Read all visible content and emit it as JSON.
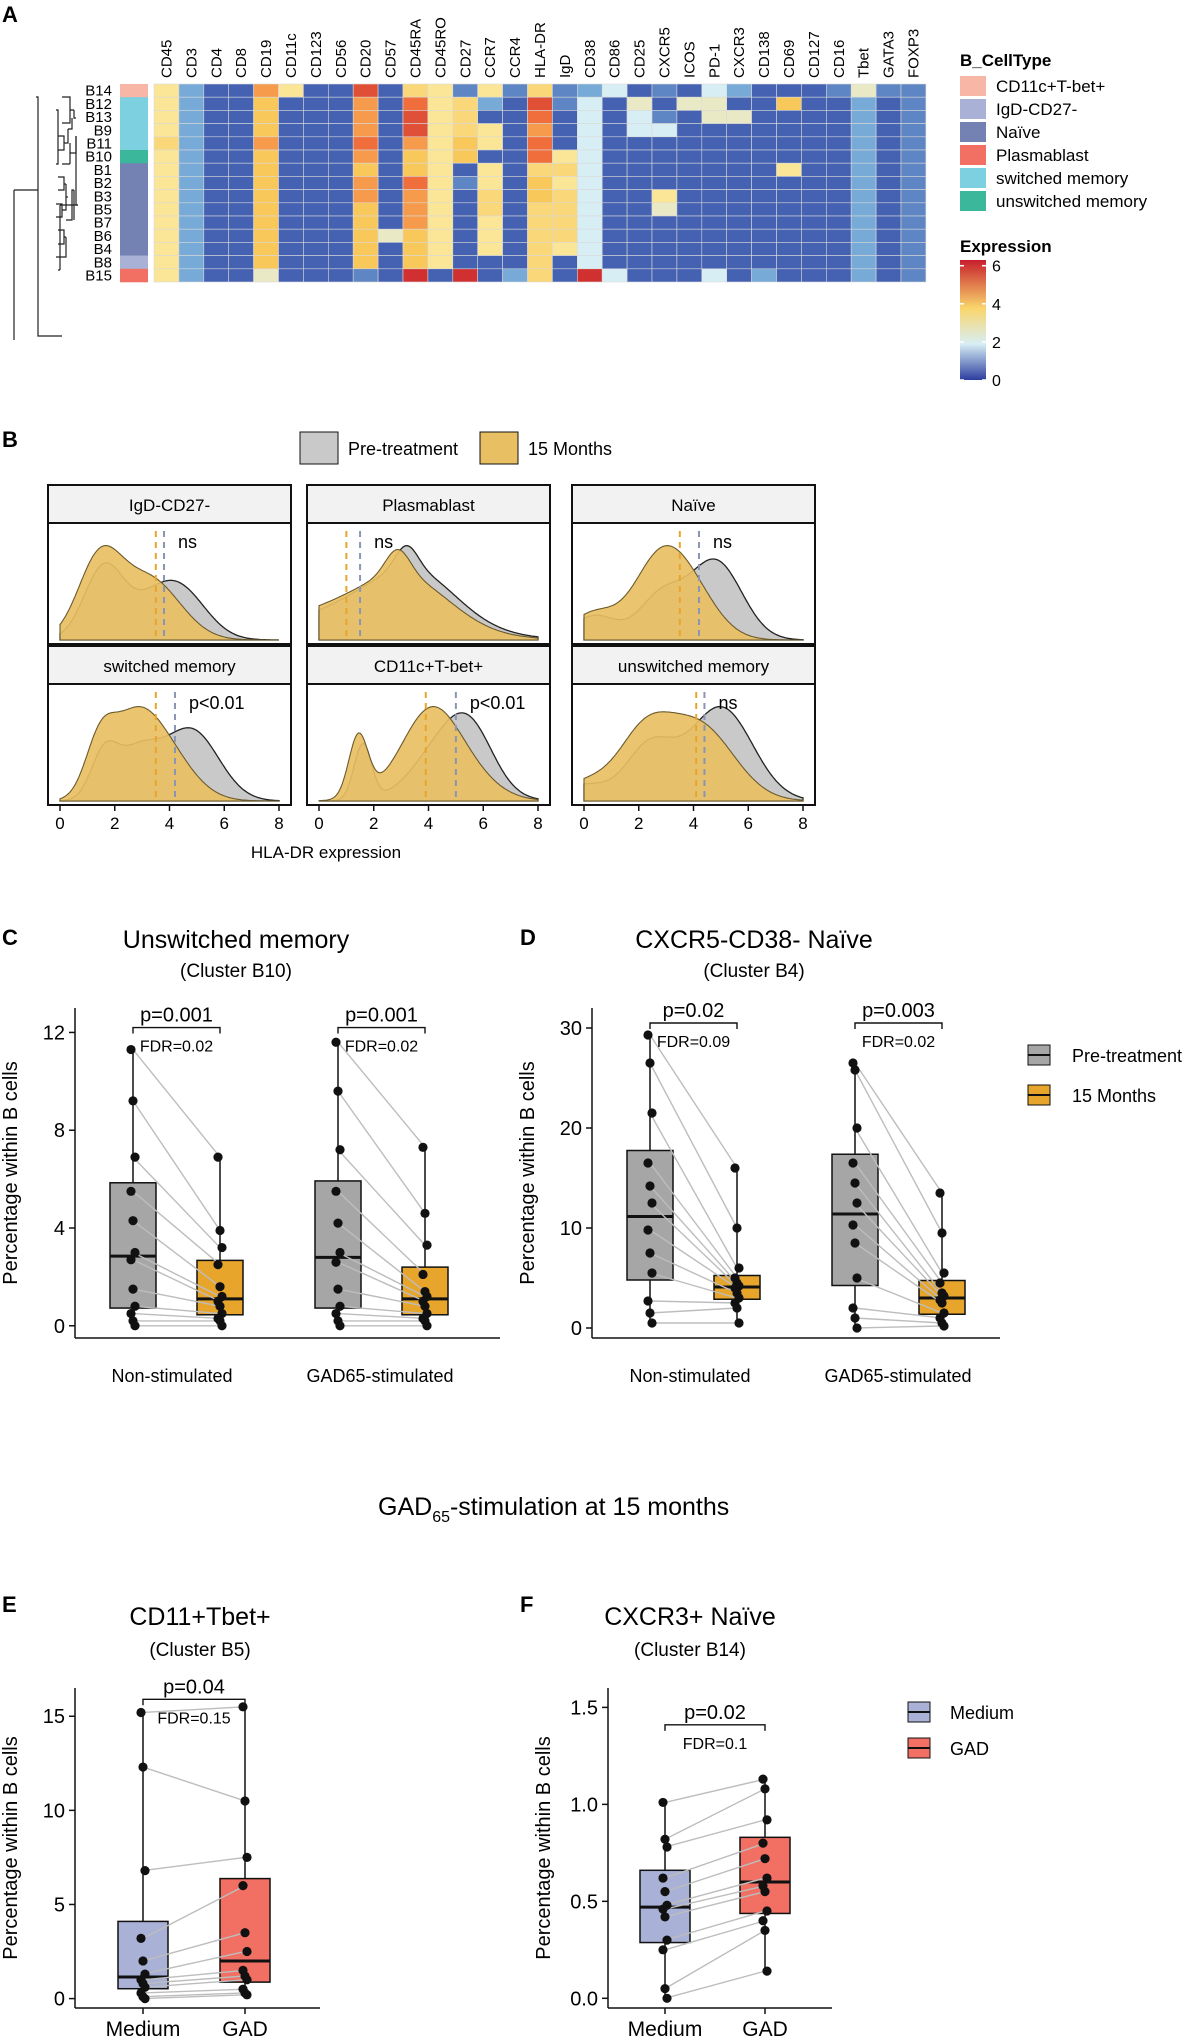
{
  "chart_data": [
    {
      "panel": "A",
      "type": "heatmap",
      "markers": [
        "CD45",
        "CD3",
        "CD4",
        "CD8",
        "CD19",
        "CD11c",
        "CD123",
        "CD56",
        "CD20",
        "CD57",
        "CD45RA",
        "CD45RO",
        "CD27",
        "CCR7",
        "CCR4",
        "HLA-DR",
        "IgD",
        "CD38",
        "CD86",
        "CD25",
        "CXCR5",
        "ICOS",
        "PD-1",
        "CXCR3",
        "CD138",
        "CD69",
        "CD127",
        "CD16",
        "Tbet",
        "GATA3",
        "FOXP3"
      ],
      "clusters": [
        "B14",
        "B12",
        "B13",
        "B9",
        "B11",
        "B10",
        "B1",
        "B2",
        "B3",
        "B5",
        "B7",
        "B6",
        "B4",
        "B8",
        "B15"
      ],
      "cluster_celltype": [
        "CD11c+T-bet+",
        "switched memory",
        "switched memory",
        "switched memory",
        "switched memory",
        "unswitched memory",
        "Naïve",
        "Naïve",
        "Naïve",
        "Naïve",
        "Naïve",
        "Naïve",
        "Naïve",
        "IgD-CD27-",
        "Plasmablast"
      ],
      "values": [
        [
          3,
          1.5,
          0.5,
          0.5,
          4.5,
          3,
          0.5,
          0.5,
          5.5,
          0.5,
          3.5,
          3,
          1,
          3,
          1,
          3.5,
          1,
          1.5,
          2,
          0.5,
          1,
          0.5,
          2,
          1.5,
          0.5,
          0.5,
          0.5,
          1,
          2.5,
          1,
          1
        ],
        [
          3,
          1.5,
          0.5,
          0.5,
          4,
          0.5,
          0.5,
          0.5,
          4.5,
          0.5,
          5,
          3,
          3.5,
          1.5,
          0.5,
          5.5,
          1,
          2,
          0.5,
          2.5,
          0.5,
          2.5,
          2.5,
          0.5,
          0.5,
          4,
          0.5,
          0.5,
          1.5,
          0.5,
          1
        ],
        [
          3,
          1.5,
          0.5,
          0.5,
          4,
          0.5,
          0.5,
          0.5,
          4.5,
          0.5,
          5.5,
          3,
          3.5,
          0.5,
          0.5,
          5,
          0.5,
          2,
          0.5,
          2,
          1,
          0.5,
          2.5,
          2.5,
          0.5,
          0.5,
          0.5,
          0.5,
          1.5,
          0.5,
          1
        ],
        [
          3,
          1.5,
          0.5,
          0.5,
          4,
          0.5,
          0.5,
          0.5,
          4.5,
          0.5,
          5.5,
          3,
          3.5,
          3,
          0.5,
          4.5,
          0.5,
          2,
          0.5,
          2,
          2,
          0.5,
          0.5,
          0.5,
          0.5,
          0.5,
          0.5,
          0.5,
          1.5,
          0.5,
          1
        ],
        [
          3.5,
          1.5,
          0.5,
          0.5,
          4.5,
          0.5,
          0.5,
          0.5,
          5,
          0.5,
          4.5,
          3,
          4,
          3,
          0.5,
          5,
          0.5,
          2,
          0.5,
          0.5,
          0.5,
          0.5,
          0.5,
          0.5,
          0.5,
          0.5,
          0.5,
          0.5,
          1.5,
          0.5,
          1
        ],
        [
          3,
          1.5,
          0.5,
          0.5,
          4,
          0.5,
          0.5,
          0.5,
          4.5,
          0.5,
          4,
          3,
          4,
          0.5,
          0.5,
          5,
          3,
          2,
          0.5,
          0.5,
          0.5,
          0.5,
          0.5,
          0.5,
          0.5,
          0.5,
          0.5,
          0.5,
          1.5,
          0.5,
          1
        ],
        [
          3,
          1.5,
          0.5,
          0.5,
          4,
          0.5,
          0.5,
          0.5,
          4,
          0.5,
          4,
          3,
          0.5,
          3,
          0.5,
          3.5,
          3.5,
          2,
          0.5,
          0.5,
          0.5,
          0.5,
          0.5,
          0.5,
          0.5,
          3,
          0.5,
          0.5,
          1.5,
          0.5,
          1
        ],
        [
          3,
          1.5,
          0.5,
          0.5,
          4,
          0.5,
          0.5,
          0.5,
          4.5,
          0.5,
          5,
          3,
          1,
          3,
          0.5,
          4,
          3,
          2,
          0.5,
          0.5,
          0.5,
          0.5,
          0.5,
          0.5,
          0.5,
          0.5,
          0.5,
          0.5,
          1.5,
          0.5,
          1
        ],
        [
          3,
          1.5,
          0.5,
          0.5,
          4,
          0.5,
          0.5,
          0.5,
          4.5,
          0.5,
          4.5,
          3,
          0.5,
          3.5,
          0.5,
          4,
          3.5,
          2,
          0.5,
          0.5,
          3,
          0.5,
          0.5,
          0.5,
          0.5,
          0.5,
          0.5,
          0.5,
          1.5,
          0.5,
          1
        ],
        [
          3,
          1.5,
          0.5,
          0.5,
          4,
          0.5,
          0.5,
          0.5,
          4,
          0.5,
          4.5,
          3,
          0.5,
          3.5,
          0.5,
          3.5,
          3.5,
          2,
          0.5,
          0.5,
          2.5,
          0.5,
          0.5,
          0.5,
          0.5,
          0.5,
          0.5,
          0.5,
          1.5,
          0.5,
          1
        ],
        [
          3,
          1.5,
          0.5,
          0.5,
          4,
          0.5,
          0.5,
          0.5,
          4,
          0.5,
          4.5,
          3,
          0.5,
          3,
          0.5,
          3.5,
          3.5,
          2,
          0.5,
          0.5,
          0.5,
          0.5,
          0.5,
          0.5,
          0.5,
          0.5,
          0.5,
          0.5,
          1.5,
          0.5,
          1
        ],
        [
          3,
          1.5,
          0.5,
          0.5,
          4,
          0.5,
          0.5,
          0.5,
          4,
          2.5,
          4,
          3,
          0.5,
          3,
          0.5,
          3.5,
          3.5,
          2,
          0.5,
          0.5,
          0.5,
          0.5,
          0.5,
          0.5,
          0.5,
          0.5,
          0.5,
          0.5,
          1.5,
          0.5,
          1
        ],
        [
          3,
          1.5,
          0.5,
          0.5,
          4,
          0.5,
          0.5,
          0.5,
          4,
          0.5,
          4,
          3,
          0.5,
          3,
          0.5,
          3.5,
          3,
          2,
          0.5,
          0.5,
          0.5,
          0.5,
          0.5,
          0.5,
          0.5,
          0.5,
          0.5,
          0.5,
          1.5,
          0.5,
          1
        ],
        [
          3,
          1.5,
          0.5,
          0.5,
          4,
          0.5,
          0.5,
          0.5,
          4,
          0.5,
          4,
          3,
          0.5,
          0.5,
          0.5,
          3.5,
          0.5,
          2,
          0.5,
          0.5,
          0.5,
          0.5,
          0.5,
          0.5,
          0.5,
          0.5,
          0.5,
          0.5,
          1.5,
          0.5,
          1
        ],
        [
          3,
          1.5,
          0.5,
          0.5,
          2.5,
          0.5,
          0.5,
          0.5,
          1,
          0.5,
          6,
          0.5,
          6,
          0.5,
          1.5,
          3.5,
          0.5,
          6,
          2,
          0.5,
          0.5,
          0.5,
          2,
          0.5,
          1.5,
          0.5,
          0.5,
          0.5,
          1.5,
          0.5,
          1
        ]
      ],
      "legend_celltype": {
        "title": "B_CellType",
        "entries": [
          "CD11c+T-bet+",
          "IgD-CD27-",
          "Naïve",
          "Plasmablast",
          "switched memory",
          "unswitched memory"
        ],
        "colors": [
          "#f7b6a6",
          "#a9b1d6",
          "#7482b3",
          "#f26f63",
          "#7dd0e0",
          "#3bb89c"
        ]
      },
      "legend_expression": {
        "title": "Expression",
        "ticks": [
          0,
          2,
          4,
          6
        ],
        "range": [
          0,
          6.3
        ]
      }
    },
    {
      "panel": "B",
      "type": "area",
      "legend": [
        "Pre-treatment",
        "15 Months"
      ],
      "xlabel": "HLA-DR expression",
      "xlim": [
        0,
        8
      ],
      "xticks": [
        0,
        2,
        4,
        6,
        8
      ],
      "facets": [
        {
          "title": "IgD-CD27-",
          "label": "ns",
          "median_pre": 3.8,
          "median_15m": 3.5
        },
        {
          "title": "Plasmablast",
          "label": "ns",
          "median_pre": 1.5,
          "median_15m": 1.0
        },
        {
          "title": "Naïve",
          "label": "ns",
          "median_pre": 4.2,
          "median_15m": 3.5
        },
        {
          "title": "switched memory",
          "label": "p<0.01",
          "median_pre": 4.2,
          "median_15m": 3.5
        },
        {
          "title": "CD11c+T-bet+",
          "label": "p<0.01",
          "median_pre": 5.0,
          "median_15m": 3.9
        },
        {
          "title": "unswitched memory",
          "label": "ns",
          "median_pre": 4.4,
          "median_15m": 4.1
        }
      ]
    },
    {
      "panel": "C",
      "type": "box",
      "title": "Unswitched memory",
      "subtitle": "(Cluster B10)",
      "ylabel": "Percentage within B cells",
      "ylim": [
        -0.5,
        13
      ],
      "yticks": [
        0,
        4,
        8,
        12
      ],
      "groups": [
        "Non-stimulated",
        "GAD65-stimulated"
      ],
      "series_names": [
        "Pre-treatment",
        "15 Months"
      ],
      "pvalues": [
        "p=0.001",
        "p=0.001"
      ],
      "fdr": [
        "FDR=0.02",
        "FDR=0.02"
      ],
      "data": [
        {
          "pre": [
            11.3,
            9.2,
            6.9,
            5.5,
            4.3,
            3.0,
            2.7,
            1.5,
            0.8,
            0.5,
            0.2,
            0.0
          ],
          "post": [
            6.9,
            3.9,
            3.2,
            2.5,
            1.6,
            1.2,
            1.0,
            0.8,
            0.5,
            0.3,
            0.2,
            0.0
          ]
        },
        {
          "pre": [
            11.6,
            9.6,
            7.2,
            5.5,
            4.2,
            3.0,
            2.6,
            1.5,
            0.8,
            0.5,
            0.2,
            0.0
          ],
          "post": [
            7.3,
            4.6,
            3.3,
            2.1,
            1.4,
            1.2,
            1.0,
            0.8,
            0.5,
            0.3,
            0.2,
            0.0
          ]
        }
      ]
    },
    {
      "panel": "D",
      "type": "box",
      "title": "CXCR5-CD38- Naïve",
      "subtitle": "(Cluster B4)",
      "ylabel": "Percentage within B cells",
      "ylim": [
        -1,
        32
      ],
      "yticks": [
        0,
        10,
        20,
        30
      ],
      "groups": [
        "Non-stimulated",
        "GAD65-stimulated"
      ],
      "series_names": [
        "Pre-treatment",
        "15 Months"
      ],
      "pvalues": [
        "p=0.02",
        "p=0.003"
      ],
      "fdr": [
        "FDR=0.09",
        "FDR=0.02"
      ],
      "data": [
        {
          "pre": [
            29.3,
            26.5,
            21.5,
            16.5,
            14.2,
            12.5,
            9.8,
            7.5,
            5.5,
            2.7,
            1.5,
            0.5
          ],
          "post": [
            16.0,
            10.0,
            6.0,
            5.0,
            4.5,
            4.2,
            4.0,
            3.5,
            3.0,
            2.5,
            2.0,
            0.5
          ],
          "legend": true
        },
        {
          "pre": [
            26.5,
            25.8,
            20.0,
            16.5,
            14.5,
            12.5,
            10.3,
            8.5,
            5.0,
            2.0,
            1.0,
            0.0
          ],
          "post": [
            13.5,
            9.5,
            5.5,
            4.5,
            3.5,
            3.2,
            2.8,
            2.5,
            1.5,
            1.0,
            0.5,
            0.2
          ]
        }
      ]
    },
    {
      "panel": "E",
      "type": "box",
      "heading": "GAD",
      "heading_sub": "65",
      "heading_rest": "-stimulation at 15 months",
      "title": "CD11+Tbet+",
      "subtitle": "(Cluster B5)",
      "ylabel": "Percentage within B cells",
      "ylim": [
        -0.5,
        16.5
      ],
      "yticks": [
        0,
        5,
        10,
        15
      ],
      "groups": [
        "Medium",
        "GAD"
      ],
      "pvalue": "p=0.04",
      "fdr": "FDR=0.15",
      "data": {
        "medium": [
          15.2,
          12.3,
          6.8,
          3.2,
          2.0,
          1.3,
          1.0,
          0.8,
          0.6,
          0.3,
          0.1,
          0.0
        ],
        "gad": [
          15.5,
          10.5,
          7.5,
          6.0,
          3.5,
          2.5,
          1.5,
          1.2,
          1.0,
          0.5,
          0.3,
          0.2
        ]
      }
    },
    {
      "panel": "F",
      "type": "box",
      "title": "CXCR3+ Naïve",
      "subtitle": "(Cluster B14)",
      "ylabel": "Percentage within B cells",
      "ylim": [
        -0.05,
        1.6
      ],
      "yticks": [
        0.0,
        0.5,
        1.0,
        1.5
      ],
      "groups": [
        "Medium",
        "GAD"
      ],
      "pvalue": "p=0.02",
      "fdr": "FDR=0.1",
      "legend": [
        "Medium",
        "GAD"
      ],
      "data": {
        "medium": [
          1.01,
          0.82,
          0.78,
          0.62,
          0.55,
          0.48,
          0.46,
          0.42,
          0.3,
          0.25,
          0.05,
          0.0
        ],
        "gad": [
          1.13,
          1.08,
          0.92,
          0.8,
          0.72,
          0.62,
          0.58,
          0.55,
          0.45,
          0.4,
          0.35,
          0.14
        ]
      }
    }
  ],
  "panel_labels": [
    "A",
    "B",
    "C",
    "D",
    "E",
    "F"
  ],
  "colors": {
    "pre": "#a6a6a6",
    "post": "#e8a52b",
    "pre_density": "#c9c9c9",
    "post_density": "#e9bf63",
    "medium": "#a9b1d6",
    "gad": "#f26f63",
    "pre_dash": "#8a95b5",
    "post_dash": "#e8a52b"
  }
}
